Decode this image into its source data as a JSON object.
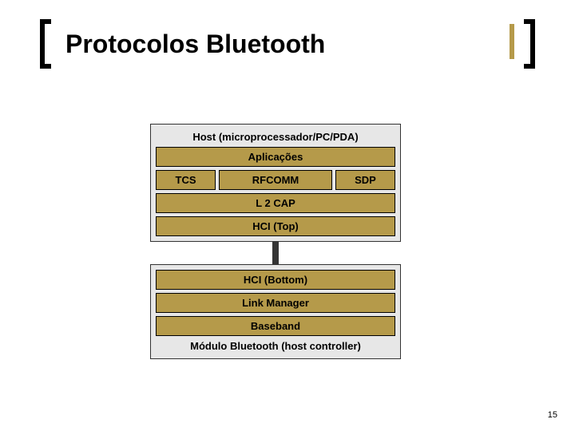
{
  "title": "Protocolos Bluetooth",
  "page_number": "15",
  "colors": {
    "layer_fill": "#b59a4a",
    "group_fill": "#e7e7e7",
    "border": "#000000",
    "text": "#000000",
    "accent": "#b59a4a"
  },
  "diagram": {
    "type": "layered-stack",
    "host": {
      "label": "Host (microprocessador/PC/PDA)",
      "layers": {
        "apps": "Aplicações",
        "tcs": "TCS",
        "rfcomm": "RFCOMM",
        "sdp": "SDP",
        "l2cap": "L 2 CAP",
        "hci_top": "HCI (Top)"
      }
    },
    "controller": {
      "label": "Módulo Bluetooth (host controller)",
      "layers": {
        "hci_bottom": "HCI (Bottom)",
        "link_manager": "Link Manager",
        "baseband": "Baseband"
      }
    }
  }
}
